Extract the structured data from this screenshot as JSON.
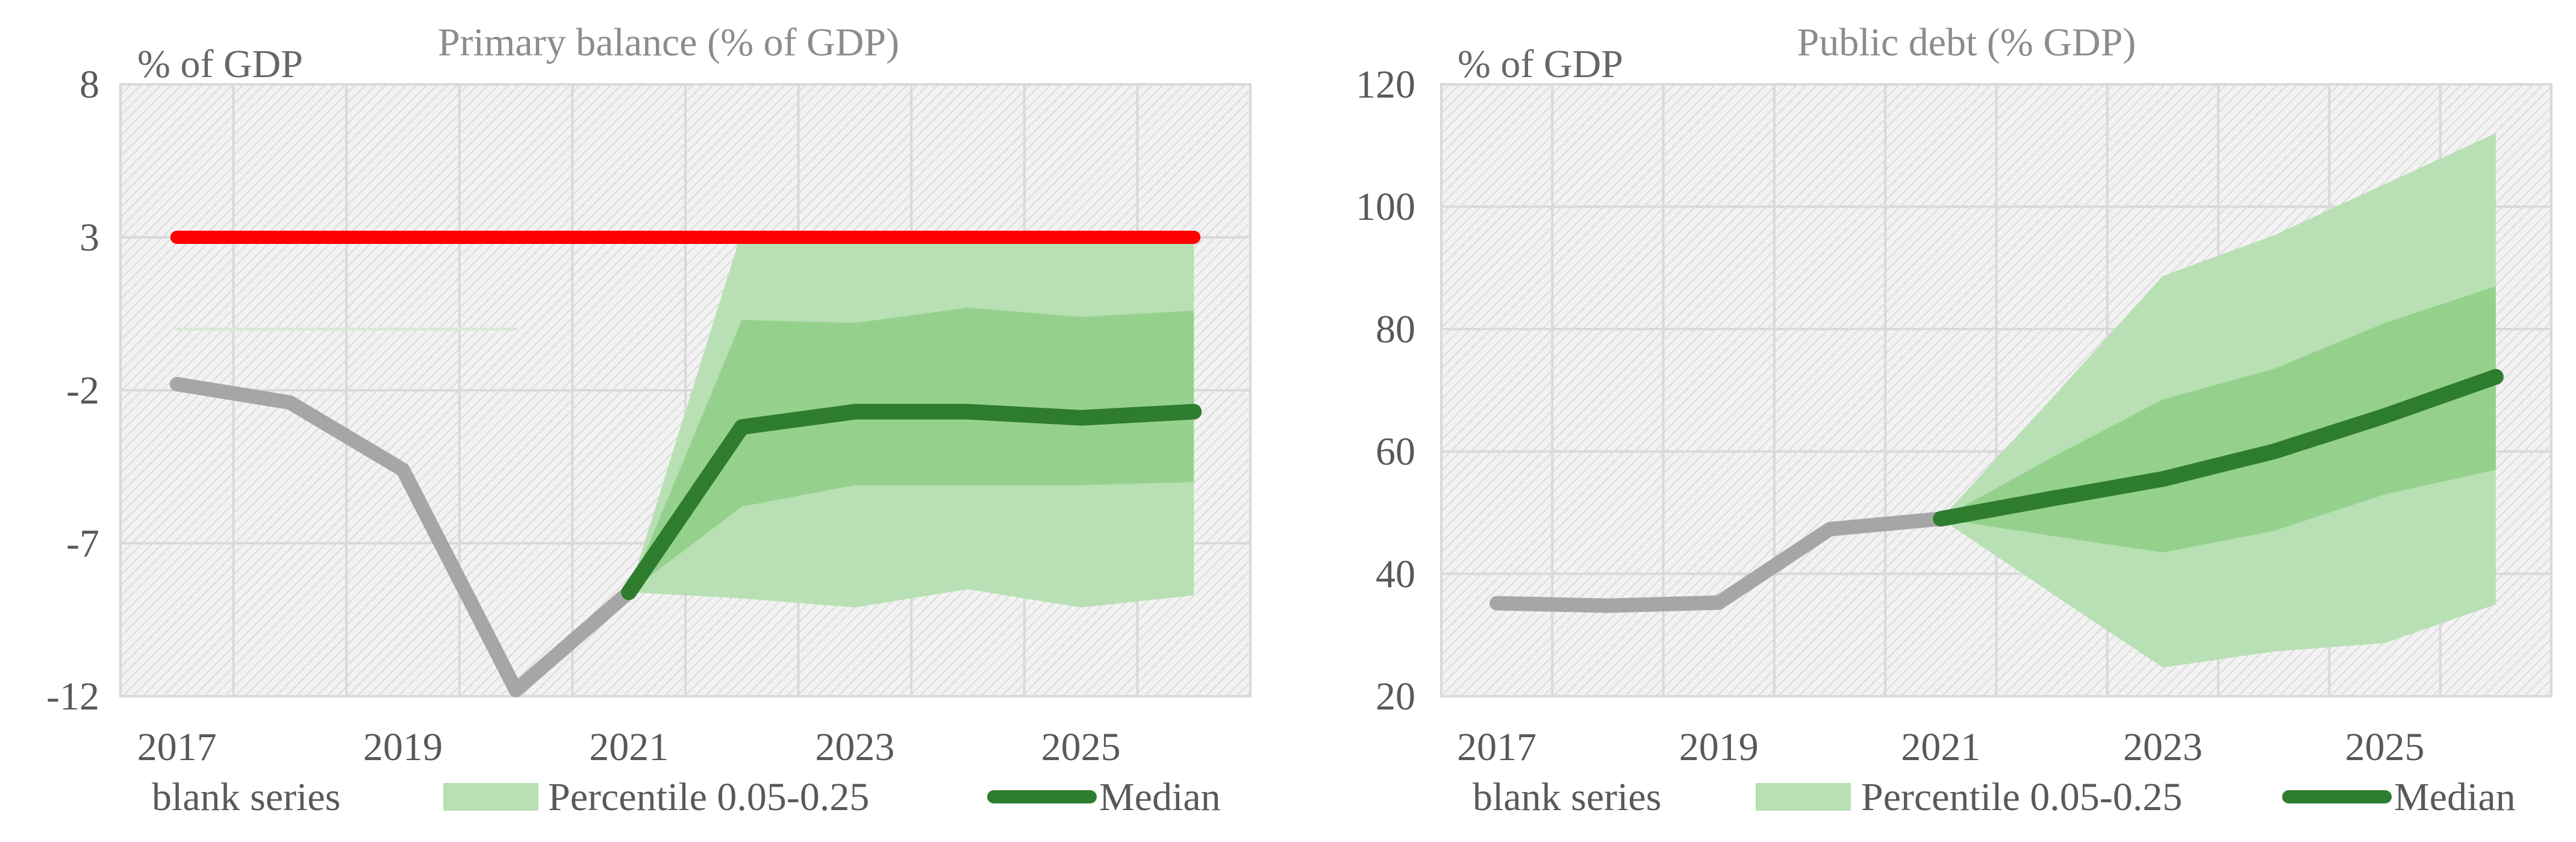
{
  "chart_data": [
    {
      "type": "area",
      "title": "Primary balance (% of GDP)",
      "unit_label": "% of GDP",
      "xlabel": "",
      "ylabel": "",
      "ylim": [
        -12,
        8
      ],
      "y_ticks": [
        8,
        3,
        -2,
        -7,
        -12
      ],
      "x_range": [
        2016.5,
        2026.5
      ],
      "x_ticks": [
        2017,
        2019,
        2021,
        2023,
        2025
      ],
      "grid": true,
      "legend_position": "bottom",
      "legend": [
        {
          "label": "blank series",
          "kind": "none"
        },
        {
          "label": "Percentile 0.05-0.25",
          "kind": "area",
          "color": "#b8e0b4"
        },
        {
          "label": "Median",
          "kind": "line",
          "color": "#2e7d2e"
        }
      ],
      "series": [
        {
          "role": "history",
          "color": "#a6a6a6",
          "x": [
            2017,
            2018,
            2019,
            2020,
            2021
          ],
          "values": [
            -1.8,
            -2.4,
            -4.6,
            -11.8,
            -8.6
          ]
        },
        {
          "role": "median",
          "color": "#2e7d2e",
          "x": [
            2021,
            2022,
            2023,
            2024,
            2025,
            2026
          ],
          "values": [
            -8.6,
            -3.2,
            -2.7,
            -2.7,
            -2.9,
            -2.7
          ]
        },
        {
          "role": "threshold",
          "color": "#ff0000",
          "x": [
            2017,
            2026
          ],
          "values": [
            3,
            3
          ]
        },
        {
          "role": "faint-guide",
          "color": "#d5ead5",
          "x": [
            2017,
            2020
          ],
          "values": [
            0,
            0
          ]
        }
      ],
      "bands": [
        {
          "range": "outer",
          "color": "#b8e0b4",
          "x": [
            2021,
            2022,
            2023,
            2024,
            2025,
            2026
          ],
          "lower": [
            -8.6,
            -8.8,
            -9.1,
            -8.5,
            -9.1,
            -8.7
          ],
          "upper": [
            -8.6,
            3.2,
            3.2,
            3.2,
            3.2,
            3.2
          ]
        },
        {
          "range": "inner",
          "color": "#95d18d",
          "x": [
            2021,
            2022,
            2023,
            2024,
            2025,
            2026
          ],
          "lower": [
            -8.6,
            -5.8,
            -5.1,
            -5.1,
            -5.1,
            -5.0
          ],
          "upper": [
            -8.6,
            0.3,
            0.2,
            0.7,
            0.4,
            0.6
          ]
        }
      ]
    },
    {
      "type": "area",
      "title": "Public debt (% GDP)",
      "unit_label": "% of GDP",
      "xlabel": "",
      "ylabel": "",
      "ylim": [
        20,
        120
      ],
      "y_ticks": [
        120,
        100,
        80,
        60,
        40,
        20
      ],
      "x_range": [
        2016.5,
        2026.5
      ],
      "x_ticks": [
        2017,
        2019,
        2021,
        2023,
        2025
      ],
      "grid": true,
      "legend_position": "bottom",
      "legend": [
        {
          "label": "blank series",
          "kind": "none"
        },
        {
          "label": "Percentile 0.05-0.25",
          "kind": "area",
          "color": "#b8e0b4"
        },
        {
          "label": "Median",
          "kind": "line",
          "color": "#2e7d2e"
        }
      ],
      "series": [
        {
          "role": "history",
          "color": "#a6a6a6",
          "x": [
            2017,
            2018,
            2019,
            2020,
            2021
          ],
          "values": [
            35.2,
            34.8,
            35.3,
            47.3,
            49.0
          ]
        },
        {
          "role": "median",
          "color": "#2e7d2e",
          "x": [
            2021,
            2022,
            2023,
            2024,
            2025,
            2026
          ],
          "values": [
            49.0,
            52.3,
            55.5,
            60.0,
            65.8,
            72.2
          ]
        }
      ],
      "bands": [
        {
          "range": "outer",
          "color": "#b8e0b4",
          "x": [
            2021,
            2022,
            2023,
            2024,
            2025,
            2026
          ],
          "lower": [
            49.0,
            36.8,
            24.7,
            27.3,
            28.7,
            35.0
          ],
          "upper": [
            49.0,
            68.7,
            88.7,
            95.3,
            103.7,
            112.0
          ]
        },
        {
          "range": "inner",
          "color": "#95d18d",
          "x": [
            2021,
            2022,
            2023,
            2024,
            2025,
            2026
          ],
          "lower": [
            49.0,
            46.2,
            43.5,
            47.0,
            53.0,
            57.0
          ],
          "upper": [
            49.0,
            59.0,
            68.5,
            73.5,
            81.0,
            87.0
          ]
        }
      ]
    }
  ]
}
